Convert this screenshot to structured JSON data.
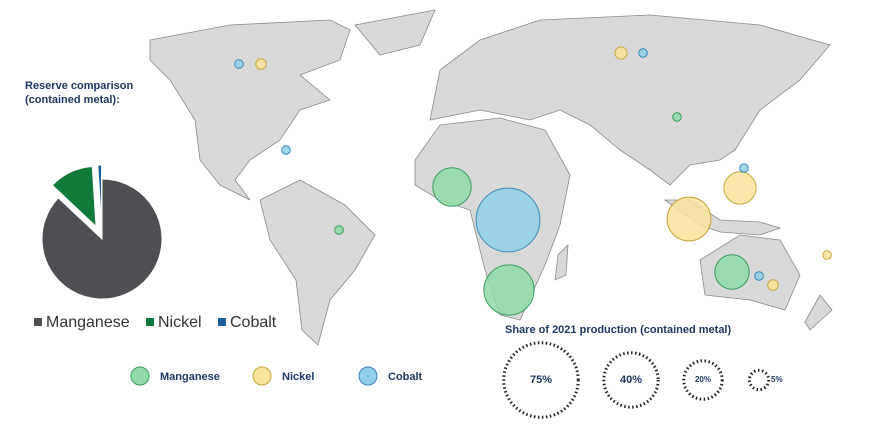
{
  "chart_data": {
    "type": "pie",
    "title": "Reserve comparison (contained metal):",
    "categories": [
      "Manganese",
      "Nickel",
      "Cobalt"
    ],
    "values": [
      87,
      12,
      1
    ],
    "colors": [
      "#4d4f53",
      "#0f7a3a",
      "#1a5f9e"
    ]
  },
  "map": {
    "title": "Share of 2021 production (contained metal)",
    "series": [
      {
        "name": "Manganese",
        "color": "#8fdaa8",
        "stroke": "#3a9a5a",
        "values": [
          34,
          20,
          16,
          1,
          1
        ]
      },
      {
        "name": "Nickel",
        "color": "#f9e49c",
        "stroke": "#c9a43a",
        "values": [
          26,
          14,
          2,
          1.5,
          1,
          1.5
        ]
      },
      {
        "name": "Cobalt",
        "color": "#8fd0ea",
        "stroke": "#3a86b8",
        "values": [
          55,
          1,
          1,
          1,
          1,
          1
        ]
      }
    ],
    "size_legend": [
      {
        "value": 75,
        "label": "75%"
      },
      {
        "value": 40,
        "label": "40%"
      },
      {
        "value": 20,
        "label": "20%"
      },
      {
        "value": 5,
        "label": "5%"
      }
    ]
  }
}
